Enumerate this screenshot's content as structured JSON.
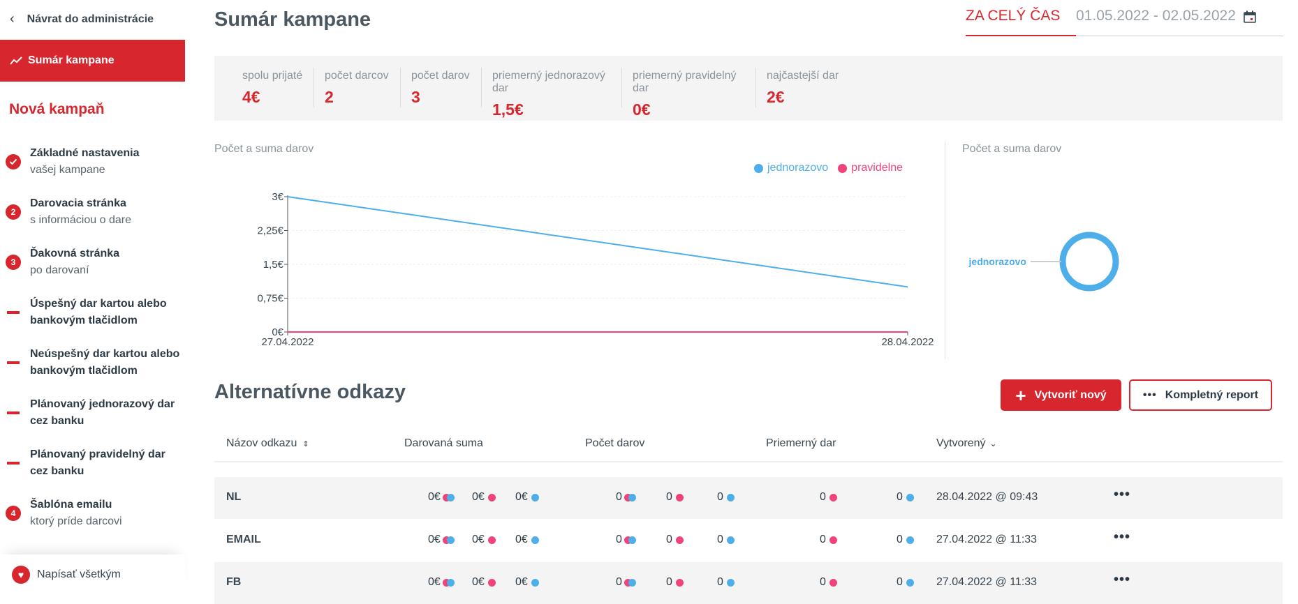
{
  "sidebar": {
    "back_label": "Návrat do administrácie",
    "active_item": "Sumár kampane",
    "section_title": "Nová kampaň",
    "steps": [
      {
        "badge": "✓",
        "title": "Základné nastavenia",
        "subtitle": "vašej kampane",
        "type": "done"
      },
      {
        "badge": "2",
        "title": "Darovacia stránka",
        "subtitle": "s informáciou o dare",
        "type": "num"
      },
      {
        "badge": "3",
        "title": "Ďakovná stránka",
        "subtitle": "po darovaní",
        "type": "num"
      },
      {
        "badge": "",
        "title": "Úspešný dar kartou alebo",
        "subtitle": "bankovým tlačidlom",
        "type": "dash"
      },
      {
        "badge": "",
        "title": "Neúspešný dar kartou alebo",
        "subtitle": "bankovým tlačidlom",
        "type": "dash"
      },
      {
        "badge": "",
        "title": "Plánovaný jednorazový dar",
        "subtitle": "cez banku",
        "type": "dash"
      },
      {
        "badge": "",
        "title": "Plánovaný pravidelný dar",
        "subtitle": "cez banku",
        "type": "dash"
      },
      {
        "badge": "4",
        "title": "Šablóna emailu",
        "subtitle": "ktorý príde darcovi",
        "type": "num"
      }
    ],
    "footer_label": "Napísať všetkým"
  },
  "header": {
    "title": "Sumár kampane",
    "tab_all": "ZA CELÝ ČAS",
    "date_range": "01.05.2022 - 02.05.2022"
  },
  "stats": [
    {
      "label": "spolu prijaté",
      "value": "4€"
    },
    {
      "label": "počet darcov",
      "value": "2"
    },
    {
      "label": "počet darov",
      "value": "3"
    },
    {
      "label": "priemerný jednorazový dar",
      "value": "1,5€"
    },
    {
      "label": "priemerný pravidelný dar",
      "value": "0€"
    },
    {
      "label": "najčastejší dar",
      "value": "2€"
    }
  ],
  "line_chart": {
    "title": "Počet a suma darov",
    "chart_data": {
      "type": "line",
      "x": [
        "27.04.2022",
        "28.04.2022"
      ],
      "series": [
        {
          "name": "jednorazovo",
          "values": [
            3,
            1
          ],
          "color": "#4daeea"
        },
        {
          "name": "pravidelne",
          "values": [
            0,
            0
          ],
          "color": "#f0437a"
        }
      ],
      "y_ticks": [
        "0€",
        "0,75€",
        "1,5€",
        "2,25€",
        "3€"
      ],
      "ylim": [
        0,
        3
      ],
      "legend_position": "top-right"
    }
  },
  "donut_chart": {
    "title": "Počet a suma darov",
    "chart_data": {
      "type": "pie",
      "labels": [
        "jednorazovo"
      ],
      "values": [
        100
      ],
      "colors": [
        "#4daeea"
      ]
    }
  },
  "alternatives": {
    "title": "Alternatívne odkazy",
    "create_label": "Vytvoriť nový",
    "report_label": "Kompletný report",
    "columns": [
      "Názov odkazu",
      "Darovaná suma",
      "Počet darov",
      "Priemerný dar",
      "Vytvorený"
    ],
    "rows": [
      {
        "name": "NL",
        "sum_total": "0€",
        "sum_reg": "0€",
        "sum_one": "0€",
        "cnt_total": "0",
        "cnt_reg": "0",
        "cnt_one": "0",
        "avg_reg": "0",
        "avg_one": "0",
        "created": "28.04.2022 @ 09:43"
      },
      {
        "name": "EMAIL",
        "sum_total": "0€",
        "sum_reg": "0€",
        "sum_one": "0€",
        "cnt_total": "0",
        "cnt_reg": "0",
        "cnt_one": "0",
        "avg_reg": "0",
        "avg_one": "0",
        "created": "27.04.2022 @ 11:33"
      },
      {
        "name": "FB",
        "sum_total": "0€",
        "sum_reg": "0€",
        "sum_one": "0€",
        "cnt_total": "0",
        "cnt_reg": "0",
        "cnt_one": "0",
        "avg_reg": "0",
        "avg_one": "0",
        "created": "27.04.2022 @ 11:33"
      }
    ]
  },
  "colors": {
    "accent": "#d7262e",
    "one_time": "#4daeea",
    "regular": "#f0437a"
  }
}
